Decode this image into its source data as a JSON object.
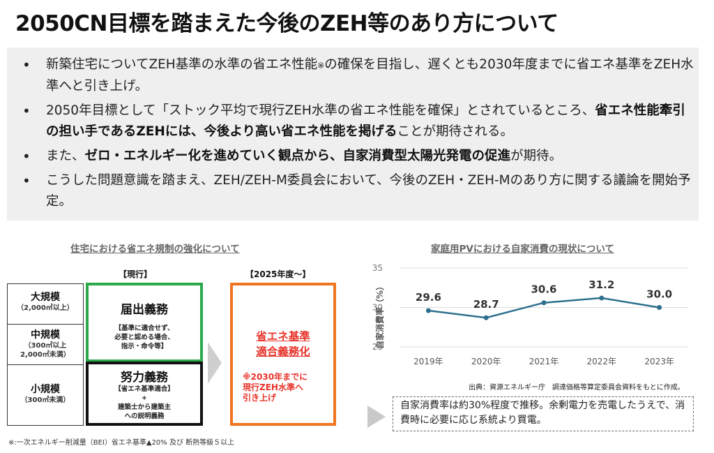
{
  "title": "2050CN目標を踏まえた今後のZEH等のあり方について",
  "bullets": [
    {
      "pre": "新築住宅についてZEH基準の水準の省エネ性能",
      "mark": "※",
      "post": "の確保を目指し、遅くとも2030年度までに省エネ基準をZEH水準へと引き上げ。"
    },
    {
      "pre": "2050年目標として「ストック平均で現行ZEH水準の省エネ性能を確保」とされているところ、",
      "bold": "省エネ性能牽引の担い手であるZEHには、今後より高い省エネ性能を掲げる",
      "post": "ことが期待される。"
    },
    {
      "pre": "また、",
      "bold": "ゼロ・エネルギー化を進めていく観点から、自家消費型太陽光発電の促進",
      "post": "が期待。"
    },
    {
      "pre": "こうした問題意識を踏まえ、ZEH/ZEH-M委員会において、今後のZEH・ZEH-Mのあり方に関する議論を開始予定。"
    }
  ],
  "left": {
    "heading": "住宅における省エネ規制の強化について",
    "current_label": "【現行】",
    "future_label": "【2025年度～】",
    "sizes": [
      {
        "name": "大規模",
        "sub": "（2,000㎡以上）"
      },
      {
        "name": "中規模",
        "sub": "（300㎡以上\n2,000㎡未満）"
      },
      {
        "name": "小規模",
        "sub": "（300㎡未満）"
      }
    ],
    "notification": {
      "title": "届出義務",
      "note": "【基準に適合せず、\n必要と認める場合、\n指示・命令等】"
    },
    "effort": {
      "title": "努力義務",
      "sub": "【省エネ基準適合】",
      "plus": "+",
      "note": "建築士から建築主\nへの説明義務"
    },
    "mandatory": {
      "title": "省エネ基準\n適合義務化",
      "note": "※2030年までに\n現行ZEH水準へ\n引き上げ"
    },
    "footnote": "※:一次エネルギー削減量（BEI）省エネ基準▲20% 及び 断熱等級５以上"
  },
  "right": {
    "heading": "家庭用PVにおける自家消費の現状について",
    "source": "出典：資源エネルギー庁　調達価格等算定委員会資料をもとに作成。",
    "conclusion": "自家消費率は約30%程度で推移。余剰電力を売電したうえで、消費時に必要に応じ系統より買電。"
  },
  "chart_data": {
    "type": "line",
    "x": [
      "2019年",
      "2020年",
      "2021年",
      "2022年",
      "2023年"
    ],
    "series": [
      {
        "values": [
          29.6,
          28.7,
          30.6,
          31.2,
          30.0
        ]
      }
    ],
    "ylabel": "自家消費率（%）",
    "ylim": [
      25,
      35
    ],
    "yticks": [
      25,
      30,
      35
    ],
    "grid": true,
    "line_color": "#2e6f8e"
  }
}
